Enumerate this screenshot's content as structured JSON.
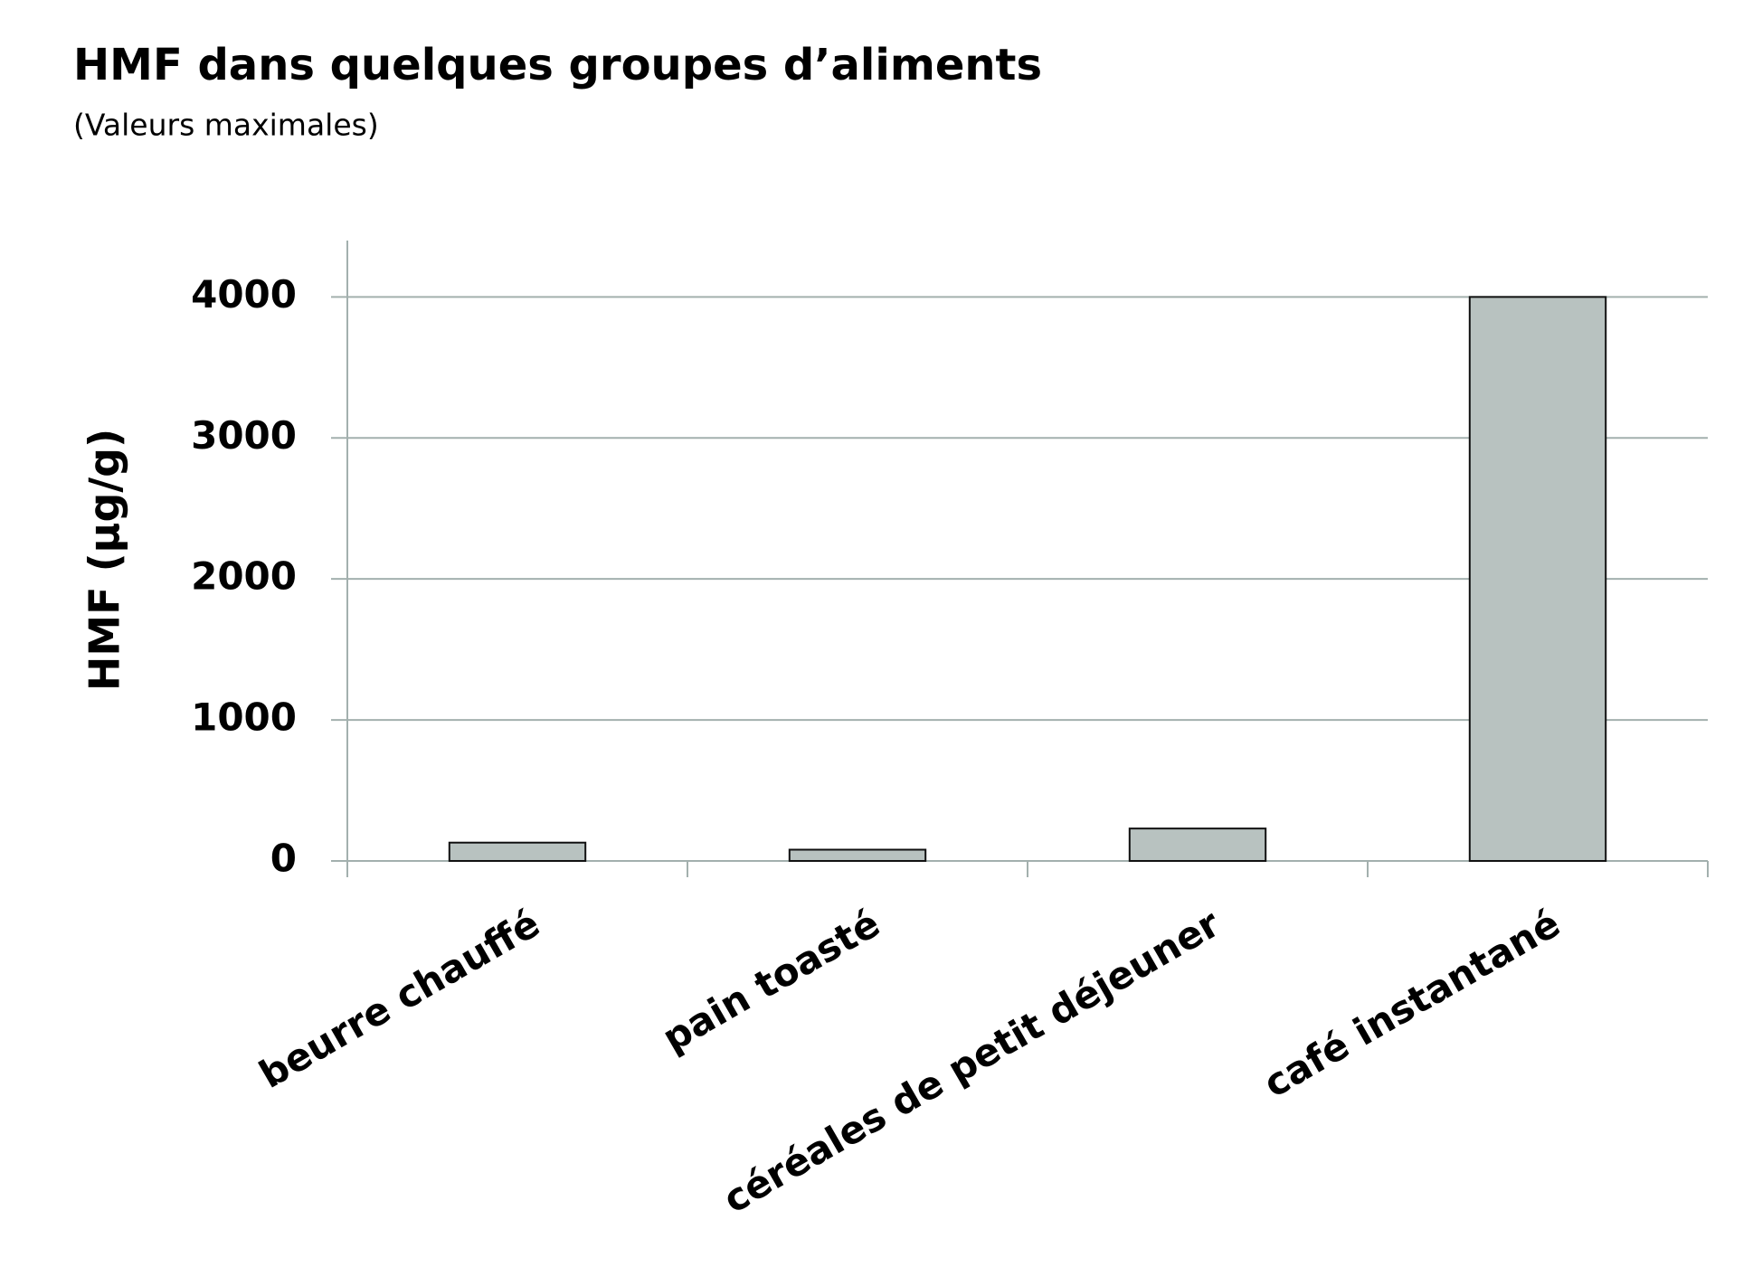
{
  "chart_data": {
    "type": "bar",
    "title": "HMF dans quelques groupes d’aliments",
    "subtitle": "(Valeurs maximales)",
    "y_label": "HMF (µg/g)",
    "categories": [
      "beurre chauffé",
      "pain toasté",
      "céréales de petit déjeuner",
      "café instantané"
    ],
    "values": [
      130,
      80,
      230,
      4000
    ],
    "color": "#b8c2c0",
    "ylim": [
      0,
      4400
    ],
    "yticks": [
      0,
      1000,
      2000,
      3000,
      4000
    ],
    "grid": true
  }
}
